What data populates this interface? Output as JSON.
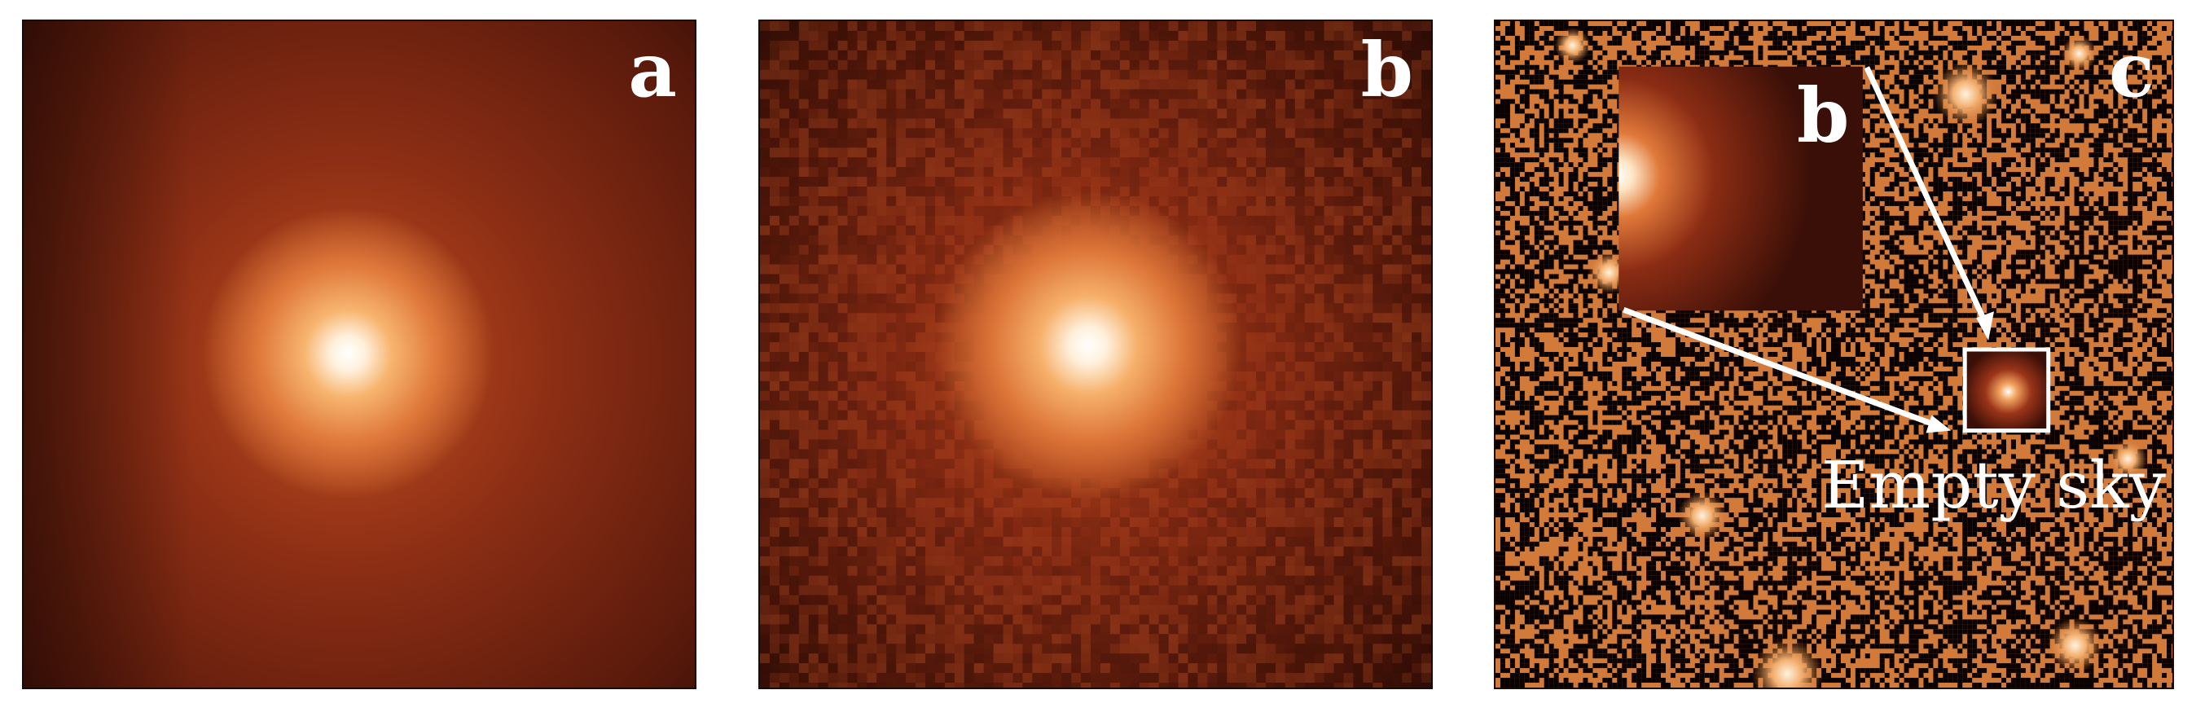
{
  "panels": {
    "a": {
      "label": "a"
    },
    "b": {
      "label": "b"
    },
    "c": {
      "label": "c",
      "inset_label": "b",
      "caption": "Empty sky"
    }
  },
  "colors": {
    "background": "#ffffff",
    "dark": "#2a0b05",
    "mid": "#8a2e15",
    "bright": "#e07a3c",
    "core": "#fff6ea",
    "sky": "#d27a3a"
  }
}
